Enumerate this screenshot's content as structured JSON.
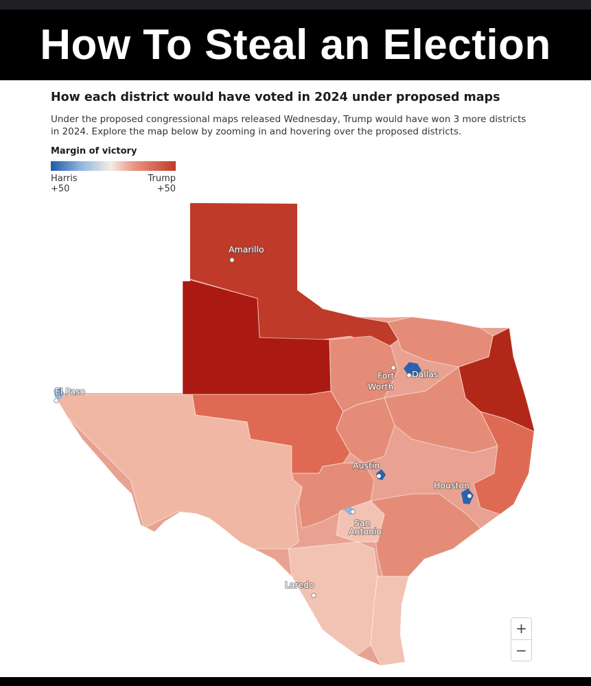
{
  "banner": {
    "title": "How To Steal an Election"
  },
  "header": {
    "headline": "How each district would have voted in 2024 under proposed maps",
    "subhead": "Under the proposed congressional maps released Wednesday, Trump would have won 3 more districts in 2024. Explore the map below by zooming in and hovering over the proposed districts."
  },
  "legend": {
    "title": "Margin of victory",
    "left_name": "Harris",
    "left_value": "+50",
    "right_name": "Trump",
    "right_value": "+50",
    "colors": {
      "harris_strong": "#1e5aa8",
      "neutral": "#f4ece6",
      "trump_strong": "#c23a26"
    }
  },
  "map": {
    "cities": {
      "amarillo": "Amarillo",
      "fort_worth_line1": "Fort",
      "fort_worth_line2": "Worth",
      "dallas": "Dallas",
      "el_paso": "El Paso",
      "austin": "Austin",
      "houston": "Houston",
      "san_antonio_line1": "San",
      "san_antonio_line2": "Antonio",
      "laredo": "Laredo"
    },
    "colors": {
      "panhandle": "#bf3a28",
      "west_central": "#ab1a12",
      "east_border": "#b22818",
      "trans_pecos": "#f0b7a5",
      "south": "#f2c2b2",
      "central": "#e48c78",
      "band": "#de6a53",
      "urban_blue": "#2a62b0"
    }
  },
  "zoom": {
    "in_label": "+",
    "out_label": "−"
  }
}
